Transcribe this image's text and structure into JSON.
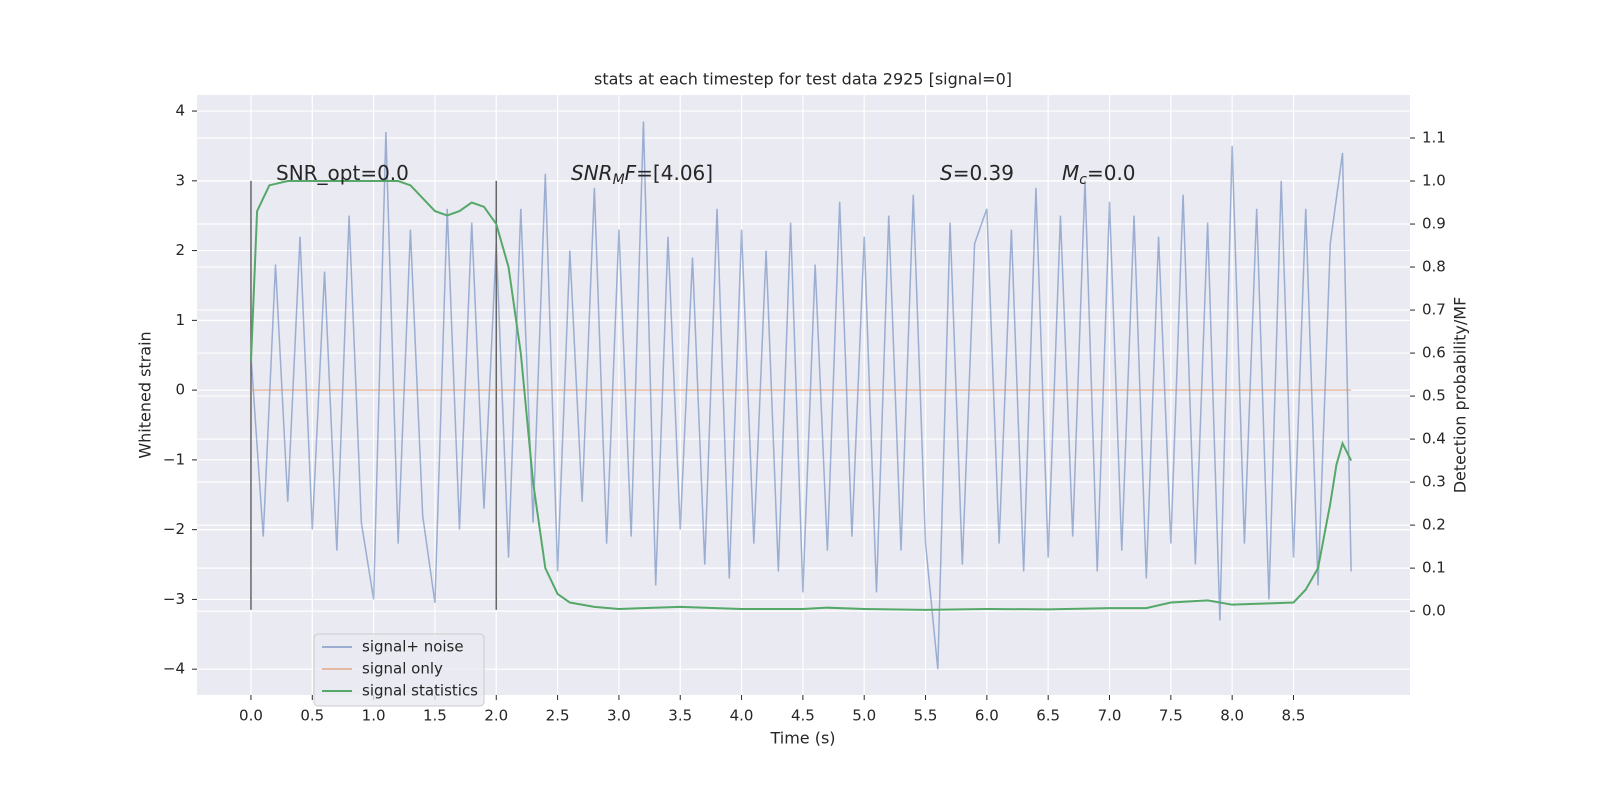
{
  "chart_data": {
    "type": "line",
    "title": "stats at each timestep for test data 2925 [signal=0]",
    "xlabel": "Time (s)",
    "ylabel": "Whitened strain",
    "y2label": "Detection probability/MF",
    "xlim": [
      -0.44,
      9.45
    ],
    "ylim": [
      -4.37,
      4.23
    ],
    "y2lim": [
      -0.195,
      1.2
    ],
    "xticks": [
      {
        "value": 0,
        "label": "0.0"
      },
      0.5,
      {
        "value": 1,
        "label": "1.0"
      },
      1.5,
      {
        "value": 2,
        "label": "2.0"
      },
      2.5,
      {
        "value": 3,
        "label": "3.0"
      },
      3.5,
      {
        "value": 4,
        "label": "4.0"
      },
      4.5,
      {
        "value": 5,
        "label": "5.0"
      },
      5.5,
      {
        "value": 6,
        "label": "6.0"
      },
      6.5,
      {
        "value": 7,
        "label": "7.0"
      },
      7.5,
      {
        "value": 8,
        "label": "8.0"
      },
      8.5
    ],
    "yticks": [
      {
        "value": -4,
        "label": "−4"
      },
      {
        "value": -3,
        "label": "−3"
      },
      {
        "value": -2,
        "label": "−2"
      },
      {
        "value": -1,
        "label": "−1"
      },
      0,
      1,
      2,
      3,
      4
    ],
    "y2ticks": [
      {
        "value": 0,
        "label": "0.0"
      },
      0.1,
      0.2,
      0.3,
      0.4,
      0.5,
      0.6,
      0.7,
      0.8,
      0.9,
      {
        "value": 1,
        "label": "1.0"
      },
      1.1
    ],
    "grid": true,
    "legend": "lower left",
    "series": [
      {
        "name": "signal+ noise",
        "color": "rgba(76,114,176,0.5)",
        "x": [
          0,
          0.1,
          0.2,
          0.3,
          0.4,
          0.5,
          0.6,
          0.7,
          0.8,
          0.9,
          1,
          1.1,
          1.2,
          1.3,
          1.4,
          1.5,
          1.6,
          1.7,
          1.8,
          1.9,
          2,
          2.1,
          2.2,
          2.3,
          2.4,
          2.5,
          2.6,
          2.7,
          2.8,
          2.9,
          3,
          3.1,
          3.2,
          3.3,
          3.4,
          3.5,
          3.6,
          3.7,
          3.8,
          3.9,
          4,
          4.1,
          4.2,
          4.3,
          4.4,
          4.5,
          4.6,
          4.7,
          4.8,
          4.9,
          5,
          5.1,
          5.2,
          5.3,
          5.4,
          5.5,
          5.6,
          5.7,
          5.8,
          5.9,
          6,
          6.1,
          6.2,
          6.3,
          6.4,
          6.5,
          6.6,
          6.7,
          6.8,
          6.9,
          7,
          7.1,
          7.2,
          7.3,
          7.4,
          7.5,
          7.6,
          7.7,
          7.8,
          7.9,
          8,
          8.1,
          8.2,
          8.3,
          8.4,
          8.5,
          8.6,
          8.7,
          8.8,
          8.9,
          8.97
        ],
        "values": [
          0.5,
          -2.1,
          1.8,
          -1.6,
          2.2,
          -2.0,
          1.7,
          -2.3,
          2.5,
          -1.9,
          -3.0,
          3.7,
          -2.2,
          2.3,
          -1.8,
          -3.05,
          2.6,
          -2.0,
          2.4,
          -1.7,
          2.1,
          -2.4,
          2.6,
          -1.9,
          3.1,
          -2.6,
          2.0,
          -1.6,
          2.9,
          -2.2,
          2.3,
          -2.1,
          3.85,
          -2.8,
          2.2,
          -2.0,
          1.9,
          -2.5,
          2.6,
          -2.7,
          2.3,
          -2.2,
          2.0,
          -2.6,
          2.4,
          -2.9,
          1.8,
          -2.3,
          2.7,
          -2.1,
          2.2,
          -2.9,
          2.5,
          -2.3,
          2.8,
          -2.2,
          -4.0,
          2.4,
          -2.5,
          2.1,
          2.6,
          -2.2,
          2.3,
          -2.6,
          2.9,
          -2.4,
          2.5,
          -2.1,
          3.0,
          -2.6,
          2.7,
          -2.3,
          2.5,
          -2.7,
          2.2,
          -2.2,
          2.8,
          -2.5,
          2.4,
          -3.3,
          3.5,
          -2.2,
          2.6,
          -3.0,
          3.0,
          -2.4,
          2.6,
          -2.8,
          2.1,
          3.4,
          -2.6
        ]
      },
      {
        "name": "signal only",
        "color": "rgba(221,132,82,0.5)",
        "x": [
          0,
          8.97
        ],
        "values": [
          0,
          0
        ]
      },
      {
        "name": "signal statistics",
        "color": "#55a868",
        "axis": "y2",
        "x": [
          0,
          0.05,
          0.15,
          0.3,
          0.5,
          1.0,
          1.2,
          1.3,
          1.4,
          1.5,
          1.6,
          1.7,
          1.8,
          1.9,
          2.0,
          2.1,
          2.2,
          2.3,
          2.4,
          2.5,
          2.6,
          2.8,
          3.0,
          3.5,
          4.0,
          4.5,
          4.7,
          5.0,
          5.5,
          6.0,
          6.5,
          7.0,
          7.3,
          7.5,
          7.8,
          8.0,
          8.3,
          8.5,
          8.6,
          8.7,
          8.8,
          8.85,
          8.9,
          8.97
        ],
        "values": [
          0.58,
          0.93,
          0.99,
          1.0,
          1.0,
          1.0,
          1.0,
          0.99,
          0.96,
          0.93,
          0.92,
          0.93,
          0.95,
          0.94,
          0.9,
          0.8,
          0.6,
          0.3,
          0.1,
          0.04,
          0.02,
          0.01,
          0.005,
          0.01,
          0.005,
          0.005,
          0.008,
          0.005,
          0.003,
          0.005,
          0.004,
          0.007,
          0.007,
          0.02,
          0.025,
          0.015,
          0.018,
          0.02,
          0.05,
          0.1,
          0.25,
          0.34,
          0.39,
          0.35
        ]
      }
    ],
    "vlines": [
      {
        "x": 0,
        "ymin": -3.15,
        "ymax": 3.0,
        "color": "#666666"
      },
      {
        "x": 2,
        "ymin": -3.15,
        "ymax": 3.0,
        "color": "#666666"
      }
    ],
    "annotations": [
      {
        "text": "SNR_opt=0.0"
      },
      {
        "main": "SNR",
        "sub": "M",
        "tail": "F",
        "rest": "=[4.06]"
      },
      {
        "main": "S",
        "rest": "=0.39"
      },
      {
        "main": "M",
        "sub": "c",
        "rest": "=0.0"
      }
    ]
  }
}
